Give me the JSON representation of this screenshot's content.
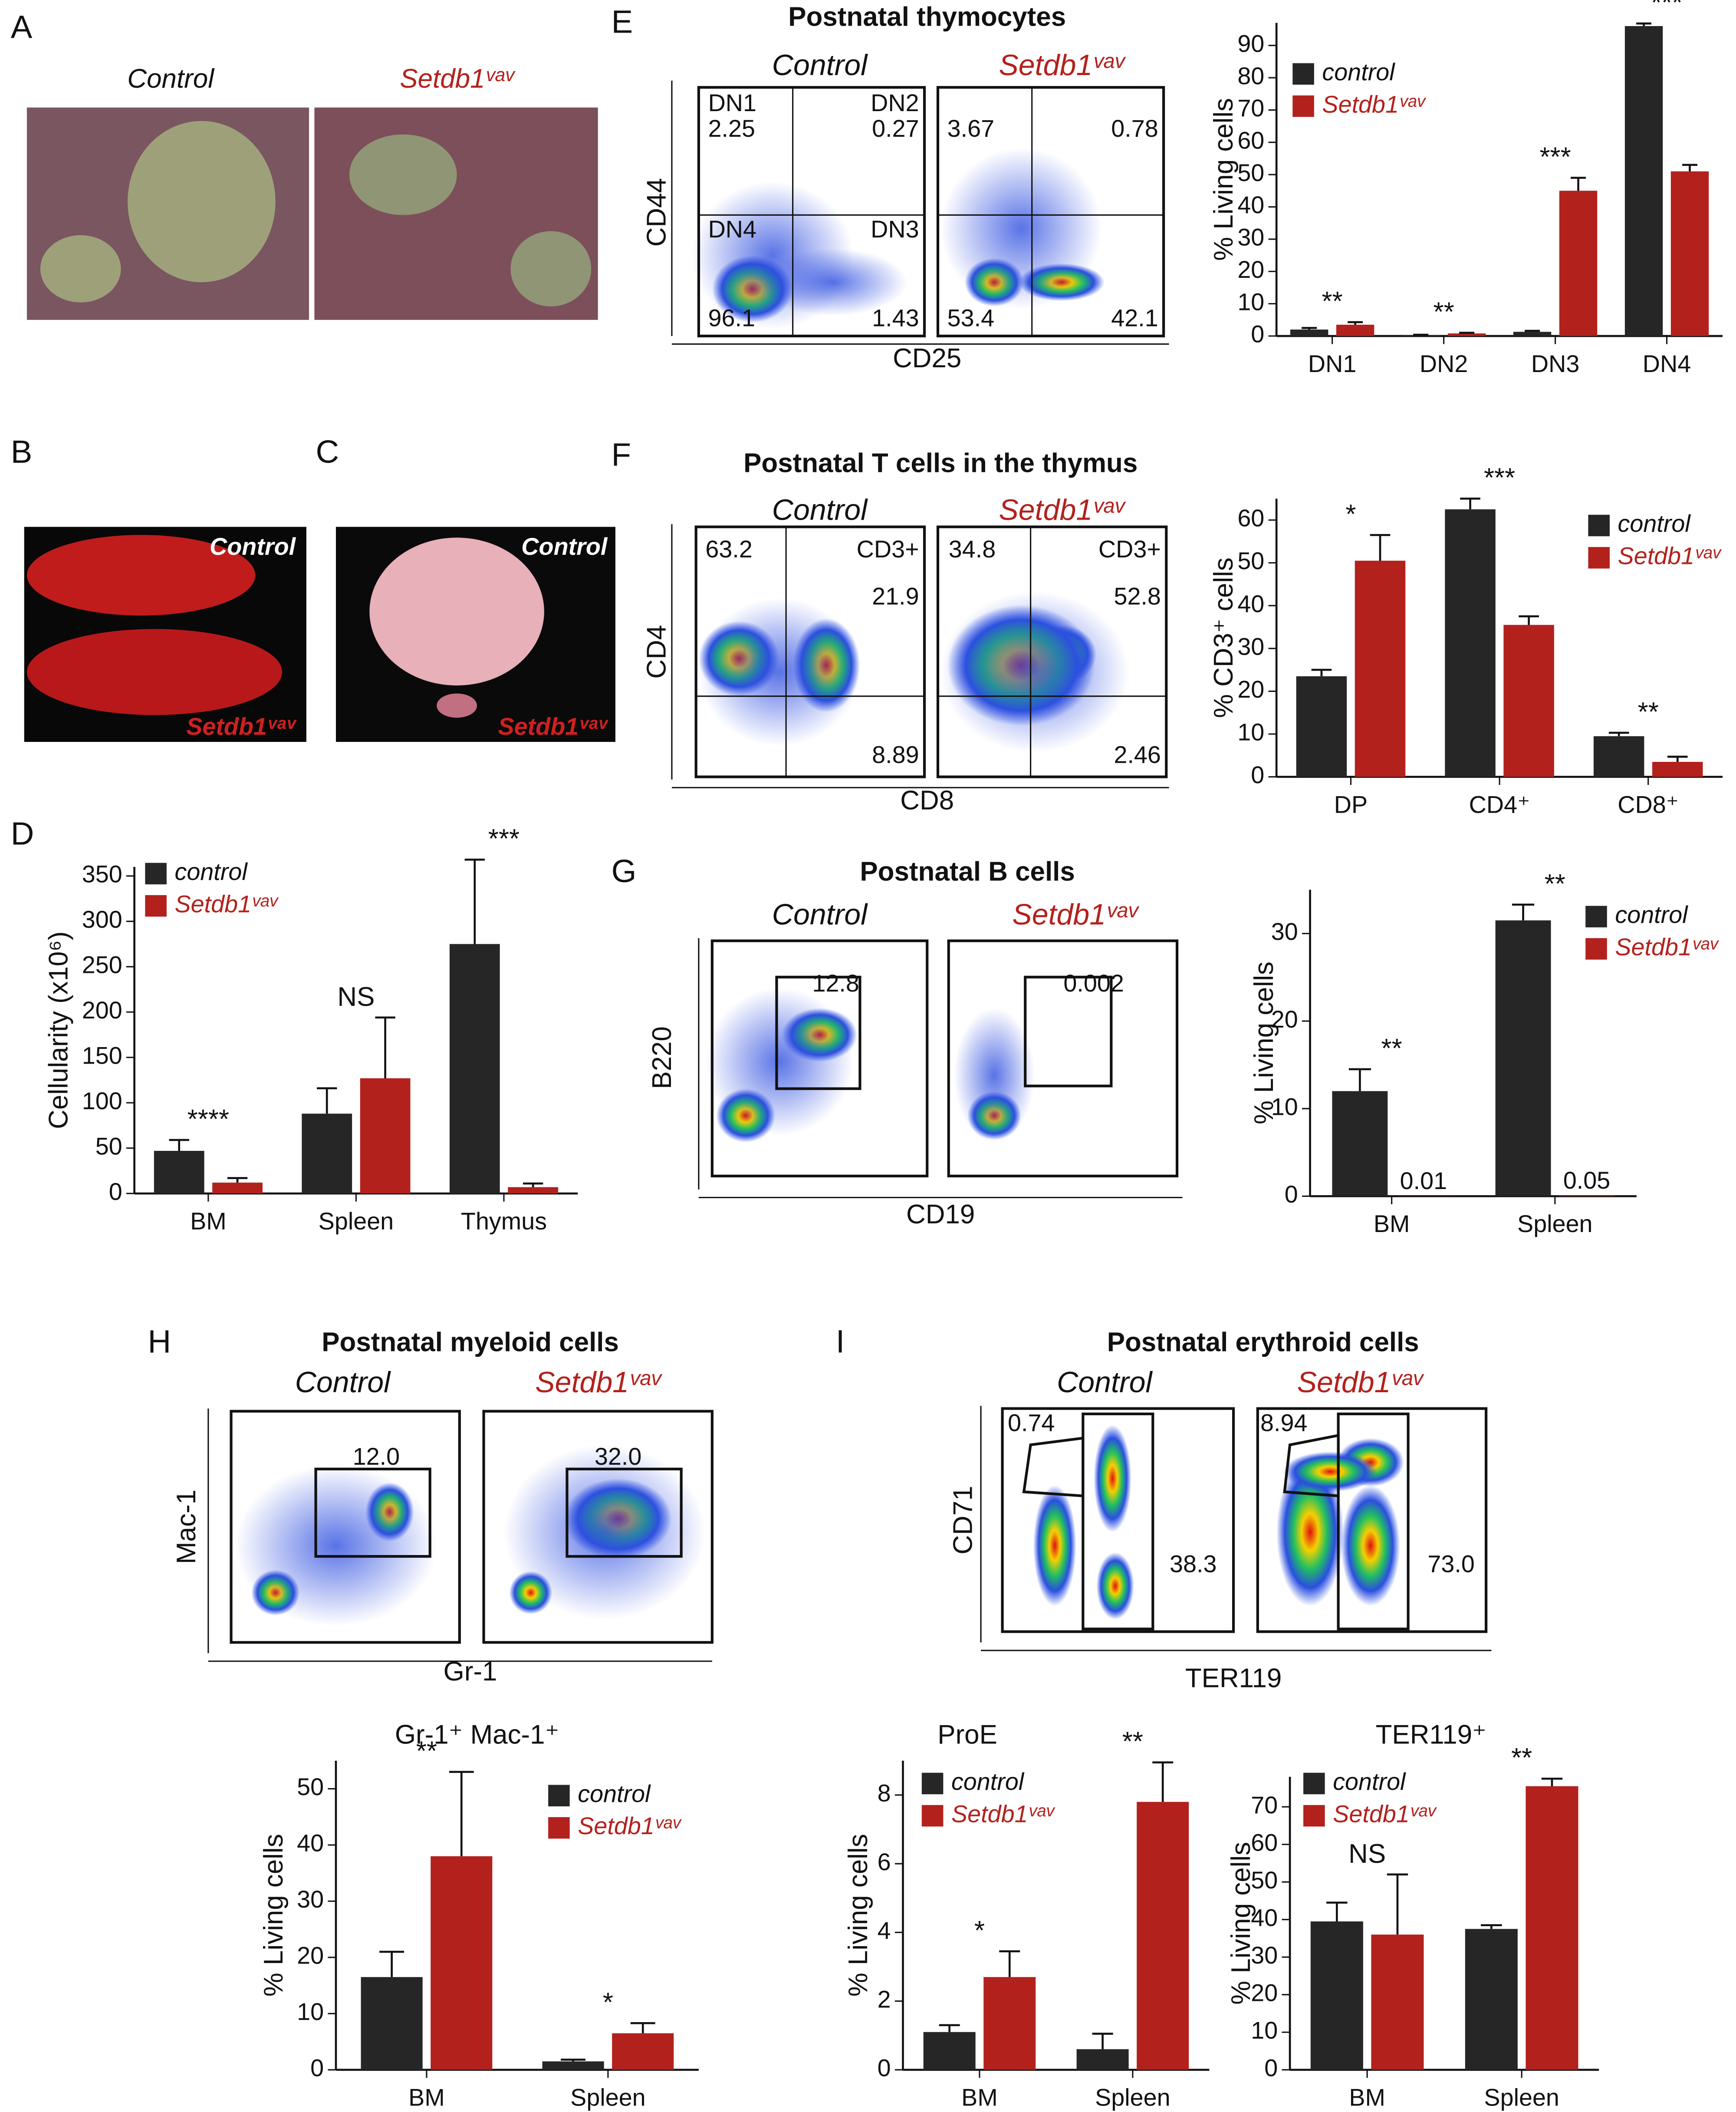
{
  "panel_labels": [
    "A",
    "B",
    "C",
    "D",
    "E",
    "F",
    "G",
    "H",
    "I"
  ],
  "photos": {
    "A": [
      "Control",
      "Setdb1ᵛᵃᵛ"
    ],
    "B": [
      "Control",
      "Setdb1ᵛᵃᵛ"
    ],
    "C": [
      "Control",
      "Setdb1ᵛᵃᵛ"
    ]
  },
  "flow": [
    {
      "title": "Postnatal thymocytes",
      "columns": [
        "Control",
        "Setdb1ᵛᵃᵛ"
      ],
      "y_label": "CD44",
      "x_label": "CD25",
      "gates": [
        [
          "DN1",
          "2.25",
          "DN2",
          "0.27",
          "DN4",
          "DN3",
          "96.1",
          "1.43"
        ],
        [
          "3.67",
          "0.78",
          "53.4",
          "42.1"
        ]
      ]
    },
    {
      "title": "Postnatal T cells in the thymus",
      "columns": [
        "Control",
        "Setdb1ᵛᵃᵛ"
      ],
      "y_label": "CD4",
      "x_label": "CD8",
      "gates": [
        [
          "63.2",
          "CD3+",
          "21.9",
          "8.89"
        ],
        [
          "34.8",
          "CD3+",
          "52.8",
          "2.46"
        ]
      ]
    },
    {
      "title": "Postnatal B cells",
      "columns": [
        "Control",
        "Setdb1ᵛᵃᵛ"
      ],
      "y_label": "B220",
      "x_label": "CD19",
      "gates": [
        [
          "12.8"
        ],
        [
          "0.002"
        ]
      ]
    },
    {
      "title": "Postnatal myeloid cells",
      "columns": [
        "Control",
        "Setdb1ᵛᵃᵛ"
      ],
      "y_label": "Mac-1",
      "x_label": "Gr-1",
      "gates": [
        [
          "12.0"
        ],
        [
          "32.0"
        ]
      ]
    },
    {
      "title": "Postnatal erythroid cells",
      "columns": [
        "Control",
        "Setdb1ᵛᵃᵛ"
      ],
      "y_label": "CD71",
      "x_label": "TER119",
      "gates": [
        [
          "0.74",
          "38.3"
        ],
        [
          "8.94",
          "73.0"
        ]
      ]
    }
  ],
  "chart_data": [
    {
      "type": "bar",
      "y_label": "Cellularity (x10⁶)",
      "categories": [
        "BM",
        "Spleen",
        "Thymus"
      ],
      "ylim": [
        0,
        360
      ],
      "yticks": [
        0,
        50,
        100,
        150,
        200,
        250,
        300,
        350
      ],
      "series": [
        {
          "name": "control",
          "color": "#262626",
          "values": [
            47,
            88,
            275
          ],
          "errors": [
            12,
            28,
            93
          ]
        },
        {
          "name": "Setdb1ᵛᵃᵛ",
          "color": "#b3211d",
          "values": [
            12,
            127,
            7
          ],
          "errors": [
            5,
            67,
            4
          ]
        }
      ],
      "annotations": [
        "****",
        "NS",
        "***"
      ]
    },
    {
      "type": "bar",
      "y_label": "% Living cells",
      "categories": [
        "DN1",
        "DN2",
        "DN3",
        "DN4"
      ],
      "ylim": [
        0,
        97
      ],
      "yticks": [
        0,
        10,
        20,
        30,
        40,
        50,
        60,
        70,
        80,
        90
      ],
      "series": [
        {
          "name": "control",
          "color": "#262626",
          "values": [
            2,
            0.3,
            1.3,
            96
          ],
          "errors": [
            0.5,
            0.1,
            0.3,
            0.8
          ]
        },
        {
          "name": "Setdb1ᵛᵃᵛ",
          "color": "#b3211d",
          "values": [
            3.5,
            0.8,
            45,
            51
          ],
          "errors": [
            0.8,
            0.2,
            4,
            2
          ]
        }
      ],
      "annotations": [
        "**",
        "**",
        "***",
        "***"
      ]
    },
    {
      "type": "bar",
      "y_label": "% CD3⁺ cells",
      "categories": [
        "DP",
        "CD4⁺",
        "CD8⁺"
      ],
      "ylim": [
        0,
        65
      ],
      "yticks": [
        0,
        10,
        20,
        30,
        40,
        50,
        60
      ],
      "series": [
        {
          "name": "control",
          "color": "#262626",
          "values": [
            23.5,
            62.5,
            9.5
          ],
          "errors": [
            1.5,
            2.5,
            0.8
          ]
        },
        {
          "name": "Setdb1ᵛᵃᵛ",
          "color": "#b3211d",
          "values": [
            50.5,
            35.5,
            3.5
          ],
          "errors": [
            6,
            2,
            1.2
          ]
        }
      ],
      "annotations": [
        "*",
        "***",
        "**"
      ]
    },
    {
      "type": "bar",
      "y_label": "% Living cells",
      "categories": [
        "BM",
        "Spleen"
      ],
      "ylim": [
        0,
        35
      ],
      "yticks": [
        0,
        10,
        20,
        30
      ],
      "series": [
        {
          "name": "control",
          "color": "#262626",
          "values": [
            12,
            31.5
          ],
          "errors": [
            2.5,
            1.8
          ]
        },
        {
          "name": "Setdb1ᵛᵃᵛ",
          "color": "#b3211d",
          "values": [
            0.01,
            0.05
          ],
          "value_labels": [
            "0.01",
            "0.05"
          ]
        }
      ],
      "annotations": [
        "**",
        "**"
      ]
    },
    {
      "type": "bar",
      "title": "Gr-1⁺ Mac-1⁺",
      "y_label": "% Living cells",
      "categories": [
        "BM",
        "Spleen"
      ],
      "ylim": [
        0,
        55
      ],
      "yticks": [
        0,
        10,
        20,
        30,
        40,
        50
      ],
      "series": [
        {
          "name": "control",
          "color": "#262626",
          "values": [
            16.5,
            1.5
          ],
          "errors": [
            4.5,
            0.3
          ]
        },
        {
          "name": "Setdb1ᵛᵃᵛ",
          "color": "#b3211d",
          "values": [
            38,
            6.5
          ],
          "errors": [
            15,
            1.8
          ]
        }
      ],
      "annotations": [
        "**",
        "*"
      ]
    },
    {
      "type": "bar",
      "title": "ProE",
      "y_label": "% Living cells",
      "categories": [
        "BM",
        "Spleen"
      ],
      "ylim": [
        0,
        9
      ],
      "yticks": [
        0,
        2,
        4,
        6,
        8
      ],
      "series": [
        {
          "name": "control",
          "color": "#262626",
          "values": [
            1.1,
            0.6
          ],
          "errors": [
            0.2,
            0.45
          ]
        },
        {
          "name": "Setdb1ᵛᵃᵛ",
          "color": "#b3211d",
          "values": [
            2.7,
            7.8
          ],
          "errors": [
            0.75,
            1.15
          ]
        }
      ],
      "annotations": [
        "*",
        "**"
      ]
    },
    {
      "type": "bar",
      "title": "TER119⁺",
      "y_label": "% Living cells",
      "categories": [
        "BM",
        "Spleen"
      ],
      "ylim": [
        0,
        78
      ],
      "yticks": [
        0,
        10,
        20,
        30,
        40,
        50,
        60,
        70
      ],
      "series": [
        {
          "name": "control",
          "color": "#262626",
          "values": [
            39.5,
            37.5
          ],
          "errors": [
            5,
            1
          ]
        },
        {
          "name": "Setdb1ᵛᵃᵛ",
          "color": "#b3211d",
          "values": [
            36,
            75.5
          ],
          "errors": [
            16,
            2
          ]
        }
      ],
      "annotations": [
        "NS",
        "**"
      ]
    }
  ]
}
